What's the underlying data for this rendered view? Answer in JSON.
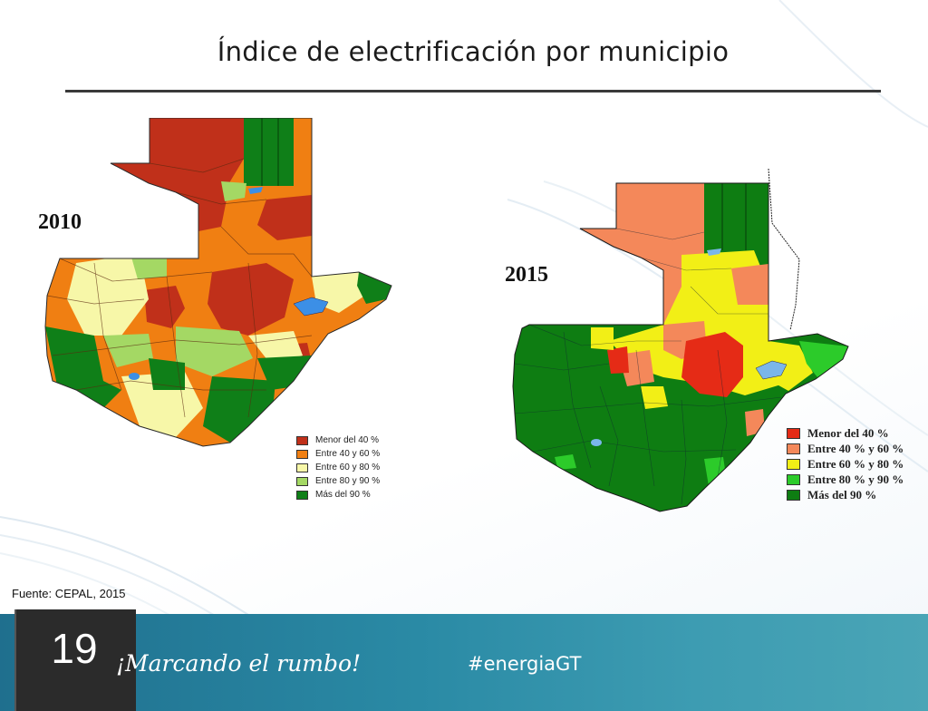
{
  "slide": {
    "title": "Índice de electrificación por municipio",
    "source": "Fuente: CEPAL, 2015",
    "page_number": "19",
    "slogan": "¡Marcando el rumbo!",
    "hashtag": "#energiaGT"
  },
  "map_2010": {
    "year": "2010",
    "legend": [
      {
        "label": "Menor del 40 %",
        "color": "#c0301a"
      },
      {
        "label": "Entre 40 y 60 %",
        "color": "#f07f12"
      },
      {
        "label": "Entre 60 y 80 %",
        "color": "#f7f7a8"
      },
      {
        "label": "Entre 80 y 90 %",
        "color": "#a4d864"
      },
      {
        "label": "Más del 90 %",
        "color": "#0f7f18"
      }
    ]
  },
  "map_2015": {
    "year": "2015",
    "legend": [
      {
        "label": "Menor del 40 %",
        "color": "#e52b16"
      },
      {
        "label": "Entre 40 % y 60 %",
        "color": "#f4885a"
      },
      {
        "label": "Entre 60 % y 80 %",
        "color": "#f2ef16"
      },
      {
        "label": "Entre 80 % y 90 %",
        "color": "#2ccb2a"
      },
      {
        "label": "Más del 90 %",
        "color": "#0e7d12"
      }
    ]
  },
  "colors": {
    "footer_bar": "#2a8aa5",
    "page_box": "#2b2b2b",
    "lake": "#3c8fe6"
  }
}
